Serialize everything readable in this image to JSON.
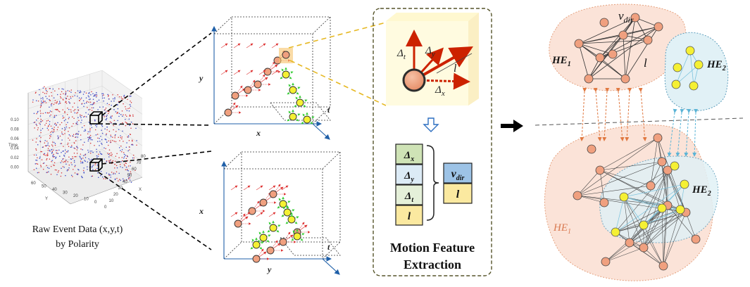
{
  "caption": {
    "line1": "Raw Event Data (x,y,t)",
    "line2": "by Polarity"
  },
  "scatter3d": {
    "z_axis_label": "Time",
    "z_ticks": [
      "0.10",
      "0.08",
      "0.06",
      "0.04",
      "0.02",
      "0.00"
    ],
    "y_axis_label": "Y",
    "y_ticks": [
      "60",
      "50",
      "40",
      "30",
      "20",
      "10",
      "0"
    ],
    "x_axis_label": "X",
    "x_ticks": [
      "0",
      "10",
      "20",
      "30",
      "40",
      "50",
      "60",
      "70",
      "80"
    ],
    "colors": {
      "pos": "#d6373b",
      "neg": "#3947c6"
    }
  },
  "cubes": {
    "top": {
      "axis_y": "y",
      "axis_x": "x",
      "axis_t": "t"
    },
    "bottom": {
      "axis_y": "x",
      "axis_x": "y",
      "axis_t": "t"
    }
  },
  "motion": {
    "title_line1": "Motion Feature",
    "title_line2": "Extraction",
    "glyph_labels": {
      "dt": "Δ",
      "dt_sub": "t",
      "dy": "Δ",
      "dy_sub": "y",
      "dx": "Δ",
      "dx_sub": "x",
      "l": "l"
    },
    "features": [
      {
        "sym": "Δ",
        "sub": "x",
        "color": "#cfe3b6"
      },
      {
        "sym": "Δ",
        "sub": "y",
        "color": "#dcebf6"
      },
      {
        "sym": "Δ",
        "sub": "t",
        "color": "#e5f0d9"
      },
      {
        "sym": "l",
        "sub": "",
        "color": "#fbe9a0"
      }
    ],
    "outputs": [
      {
        "sym": "v",
        "sub": "dir",
        "color": "#9dc3e6"
      },
      {
        "sym": "l",
        "sub": "",
        "color": "#fbe9a0"
      }
    ]
  },
  "hypergraph": {
    "top": {
      "he1": "HE",
      "he1_sub": "1",
      "he2": "HE",
      "he2_sub": "2",
      "vdir": "v",
      "vdir_sub": "dir",
      "l": "l"
    },
    "bottom": {
      "he1": "HE",
      "he1_sub": "1",
      "he2": "HE",
      "he2_sub": "2"
    },
    "colors": {
      "node_orange": "#f0a07f",
      "node_yellow": "#f5f034",
      "blob_orange": "#fbe3d8",
      "blob_blue": "#e1f1f6"
    }
  }
}
